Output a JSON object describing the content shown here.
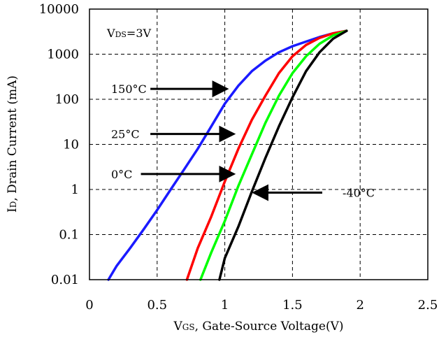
{
  "chart_data": {
    "type": "line",
    "xlabel_main": "V",
    "xlabel_sub": "GS",
    "xlabel_rest": ", Gate-Source Voltage(V)",
    "ylabel_main": "I",
    "ylabel_sub": "D",
    "ylabel_rest": ", Drain Current (mA)",
    "xlim": [
      0,
      2.5
    ],
    "ylim": [
      0.01,
      10000
    ],
    "yscale": "log",
    "grid": true,
    "xticks": [
      "0",
      "0.5",
      "1",
      "1.5",
      "2",
      "2.5"
    ],
    "yticks": [
      "0.01",
      "0.1",
      "1",
      "10",
      "100",
      "1000",
      "10000"
    ],
    "series": [
      {
        "name": "150°C",
        "color": "#1a1aff",
        "points": [
          [
            0.14,
            0.01
          ],
          [
            0.2,
            0.02
          ],
          [
            0.3,
            0.05
          ],
          [
            0.4,
            0.13
          ],
          [
            0.5,
            0.35
          ],
          [
            0.6,
            1.0
          ],
          [
            0.7,
            2.8
          ],
          [
            0.8,
            8
          ],
          [
            0.9,
            25
          ],
          [
            1.0,
            80
          ],
          [
            1.1,
            200
          ],
          [
            1.2,
            420
          ],
          [
            1.3,
            720
          ],
          [
            1.4,
            1100
          ],
          [
            1.5,
            1500
          ],
          [
            1.6,
            1900
          ],
          [
            1.7,
            2400
          ],
          [
            1.8,
            2900
          ],
          [
            1.9,
            3300
          ]
        ]
      },
      {
        "name": "25°C",
        "color": "#ff0000",
        "points": [
          [
            0.72,
            0.01
          ],
          [
            0.8,
            0.05
          ],
          [
            0.9,
            0.25
          ],
          [
            1.0,
            1.5
          ],
          [
            1.1,
            8
          ],
          [
            1.2,
            35
          ],
          [
            1.3,
            120
          ],
          [
            1.4,
            380
          ],
          [
            1.5,
            900
          ],
          [
            1.6,
            1600
          ],
          [
            1.7,
            2300
          ],
          [
            1.8,
            2900
          ],
          [
            1.9,
            3300
          ]
        ]
      },
      {
        "name": "0°C",
        "color": "#00ff00",
        "points": [
          [
            0.82,
            0.01
          ],
          [
            0.9,
            0.04
          ],
          [
            1.0,
            0.2
          ],
          [
            1.1,
            1.2
          ],
          [
            1.2,
            6
          ],
          [
            1.3,
            30
          ],
          [
            1.4,
            120
          ],
          [
            1.5,
            380
          ],
          [
            1.6,
            900
          ],
          [
            1.7,
            1700
          ],
          [
            1.8,
            2600
          ],
          [
            1.9,
            3300
          ]
        ]
      },
      {
        "name": "-40°C",
        "color": "#000000",
        "points": [
          [
            0.96,
            0.01
          ],
          [
            1.0,
            0.03
          ],
          [
            1.1,
            0.15
          ],
          [
            1.2,
            0.9
          ],
          [
            1.3,
            5
          ],
          [
            1.4,
            25
          ],
          [
            1.5,
            110
          ],
          [
            1.6,
            420
          ],
          [
            1.7,
            1100
          ],
          [
            1.8,
            2200
          ],
          [
            1.9,
            3300
          ]
        ]
      }
    ],
    "annotations": [
      {
        "text": "150°C",
        "label_at": [
          0.16,
          170
        ],
        "arrow_from": [
          0.45,
          170
        ],
        "arrow_to": [
          1.0,
          170
        ]
      },
      {
        "text": "25°C",
        "label_at": [
          0.16,
          17
        ],
        "arrow_from": [
          0.45,
          17
        ],
        "arrow_to": [
          1.05,
          17
        ]
      },
      {
        "text": "0°C",
        "label_at": [
          0.16,
          2.2
        ],
        "arrow_from": [
          0.38,
          2.2
        ],
        "arrow_to": [
          1.05,
          2.2
        ]
      },
      {
        "text": "-40°C",
        "label_at": [
          1.87,
          0.85
        ],
        "arrow_from": [
          1.72,
          0.85
        ],
        "arrow_to": [
          1.23,
          0.85
        ]
      }
    ],
    "condition_label_main": "V",
    "condition_label_sub": "DS",
    "condition_label_rest": "=3V"
  }
}
